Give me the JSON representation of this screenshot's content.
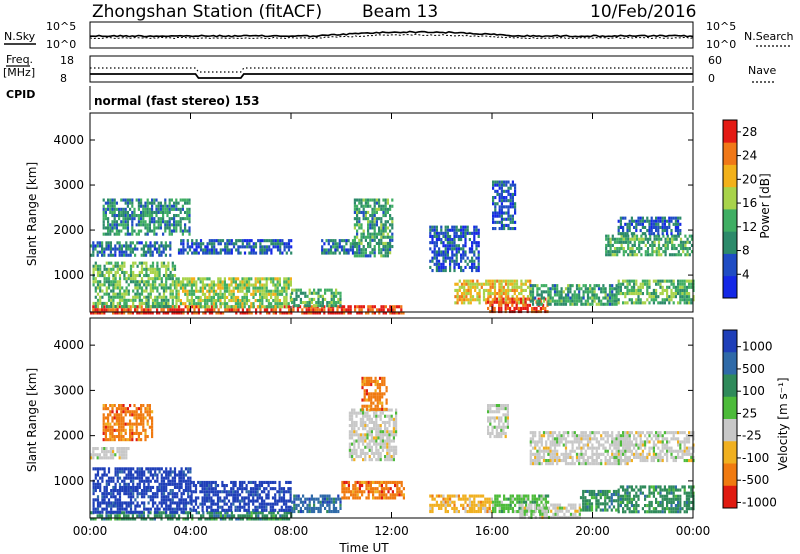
{
  "header": {
    "station": "Zhongshan Station (fitACF)",
    "beam": "Beam 13",
    "date": "10/Feb/2016"
  },
  "summary_panels": {
    "nsky": {
      "label": "N.Sky",
      "ticks": [
        "10^5",
        "10^0"
      ]
    },
    "nsearch": {
      "label": "N.Search",
      "ticks": [
        "10^5",
        "10^0"
      ]
    },
    "freq": {
      "label_line1": "Freq.",
      "label_line2": "[MHz]",
      "ticks": [
        "18",
        "8"
      ]
    },
    "nave": {
      "label": "Nave",
      "ticks": [
        "60",
        "0"
      ]
    },
    "cpid": {
      "label": "CPID",
      "value": "normal (fast stereo) 153"
    }
  },
  "chart_data": [
    {
      "type": "heatmap",
      "name": "power",
      "xlabel": "Time UT",
      "ylabel": "Slant Range [km]",
      "xlim": [
        0,
        24
      ],
      "ylim": [
        180,
        4600
      ],
      "x_ticks": [
        "00:00",
        "04:00",
        "08:00",
        "12:00",
        "16:00",
        "20:00",
        "00:00"
      ],
      "y_ticks": [
        1000,
        2000,
        3000,
        4000
      ],
      "colorbar": {
        "label": "Power [dB]",
        "ticks": [
          4,
          8,
          12,
          16,
          20,
          24,
          28
        ],
        "levels": [
          0,
          4,
          8,
          12,
          16,
          20,
          24,
          28,
          30
        ],
        "colors": [
          "#1428e6",
          "#1f4cc4",
          "#2c8a6a",
          "#3fae63",
          "#a8d34a",
          "#f2b11a",
          "#f07818",
          "#e41a14"
        ]
      },
      "regions": [
        {
          "t": [
            0.0,
            12.5
          ],
          "r": [
            180,
            330
          ],
          "value": 29
        },
        {
          "t": [
            0.1,
            3.4
          ],
          "r": [
            330,
            1300
          ],
          "value": 15
        },
        {
          "t": [
            3.4,
            8.0
          ],
          "r": [
            330,
            950
          ],
          "value": 17
        },
        {
          "t": [
            8.0,
            10.0
          ],
          "r": [
            330,
            700
          ],
          "value": 14
        },
        {
          "t": [
            0.0,
            3.2
          ],
          "r": [
            1450,
            1750
          ],
          "value": 8
        },
        {
          "t": [
            0.5,
            4.0
          ],
          "r": [
            1900,
            2700
          ],
          "value": 11
        },
        {
          "t": [
            3.5,
            8.0
          ],
          "r": [
            1500,
            1800
          ],
          "value": 7
        },
        {
          "t": [
            9.2,
            10.5
          ],
          "r": [
            1500,
            1800
          ],
          "value": 8
        },
        {
          "t": [
            10.5,
            12.0
          ],
          "r": [
            1400,
            2700
          ],
          "value": 12
        },
        {
          "t": [
            13.5,
            15.5
          ],
          "r": [
            1100,
            2100
          ],
          "value": 6
        },
        {
          "t": [
            14.5,
            17.5
          ],
          "r": [
            400,
            900
          ],
          "value": 21
        },
        {
          "t": [
            15.8,
            18.2
          ],
          "r": [
            180,
            500
          ],
          "value": 29
        },
        {
          "t": [
            16.0,
            16.9
          ],
          "r": [
            2000,
            3100
          ],
          "value": 6
        },
        {
          "t": [
            17.5,
            21.0
          ],
          "r": [
            350,
            800
          ],
          "value": 12
        },
        {
          "t": [
            21.0,
            24.0
          ],
          "r": [
            350,
            900
          ],
          "value": 14
        },
        {
          "t": [
            20.5,
            24.0
          ],
          "r": [
            1450,
            1900
          ],
          "value": 13
        },
        {
          "t": [
            21.0,
            23.5
          ],
          "r": [
            1950,
            2300
          ],
          "value": 7
        }
      ]
    },
    {
      "type": "heatmap",
      "name": "velocity",
      "xlabel": "Time UT",
      "ylabel": "Slant Range [km]",
      "xlim": [
        0,
        24
      ],
      "ylim": [
        180,
        4600
      ],
      "x_ticks": [
        "00:00",
        "04:00",
        "08:00",
        "12:00",
        "16:00",
        "20:00",
        "00:00"
      ],
      "y_ticks": [
        1000,
        2000,
        3000,
        4000
      ],
      "colorbar": {
        "label": "Velocity [m s⁻¹]",
        "tick_labels": [
          "1000",
          "500",
          "100",
          "25",
          "-25",
          "-100",
          "-500",
          "-1000"
        ],
        "colors": [
          "#1f3fb8",
          "#2f6aa8",
          "#2f8a5a",
          "#4dbb3a",
          "#c8c8c8",
          "#f0b020",
          "#f07a10",
          "#e01a10"
        ]
      },
      "regions": [
        {
          "t": [
            0.0,
            8.0
          ],
          "r": [
            180,
            330
          ],
          "level": 2
        },
        {
          "t": [
            0.1,
            4.0
          ],
          "r": [
            330,
            1300
          ],
          "level": 0
        },
        {
          "t": [
            4.0,
            8.0
          ],
          "r": [
            330,
            1000
          ],
          "level": 0
        },
        {
          "t": [
            8.0,
            10.0
          ],
          "r": [
            330,
            700
          ],
          "level": 1
        },
        {
          "t": [
            0.0,
            1.5
          ],
          "r": [
            1500,
            1750
          ],
          "level": 4
        },
        {
          "t": [
            0.5,
            2.5
          ],
          "r": [
            1900,
            2700
          ],
          "level": 6
        },
        {
          "t": [
            10.3,
            12.2
          ],
          "r": [
            1500,
            2600
          ],
          "level": 4
        },
        {
          "t": [
            10.8,
            11.8
          ],
          "r": [
            2600,
            3300
          ],
          "level": 6
        },
        {
          "t": [
            10.0,
            12.5
          ],
          "r": [
            600,
            1000
          ],
          "level": 6
        },
        {
          "t": [
            13.5,
            16.0
          ],
          "r": [
            350,
            700
          ],
          "level": 5
        },
        {
          "t": [
            16.0,
            18.2
          ],
          "r": [
            350,
            700
          ],
          "level": 3
        },
        {
          "t": [
            17.0,
            19.5
          ],
          "r": [
            180,
            500
          ],
          "level": 4
        },
        {
          "t": [
            15.8,
            16.6
          ],
          "r": [
            2000,
            2700
          ],
          "level": 4
        },
        {
          "t": [
            17.5,
            21.5
          ],
          "r": [
            1400,
            2100
          ],
          "level": 4
        },
        {
          "t": [
            21.0,
            24.0
          ],
          "r": [
            1450,
            2100
          ],
          "level": 4
        },
        {
          "t": [
            21.0,
            24.0
          ],
          "r": [
            350,
            900
          ],
          "level": 2
        },
        {
          "t": [
            19.5,
            21.0
          ],
          "r": [
            350,
            800
          ],
          "level": 2
        }
      ]
    }
  ]
}
